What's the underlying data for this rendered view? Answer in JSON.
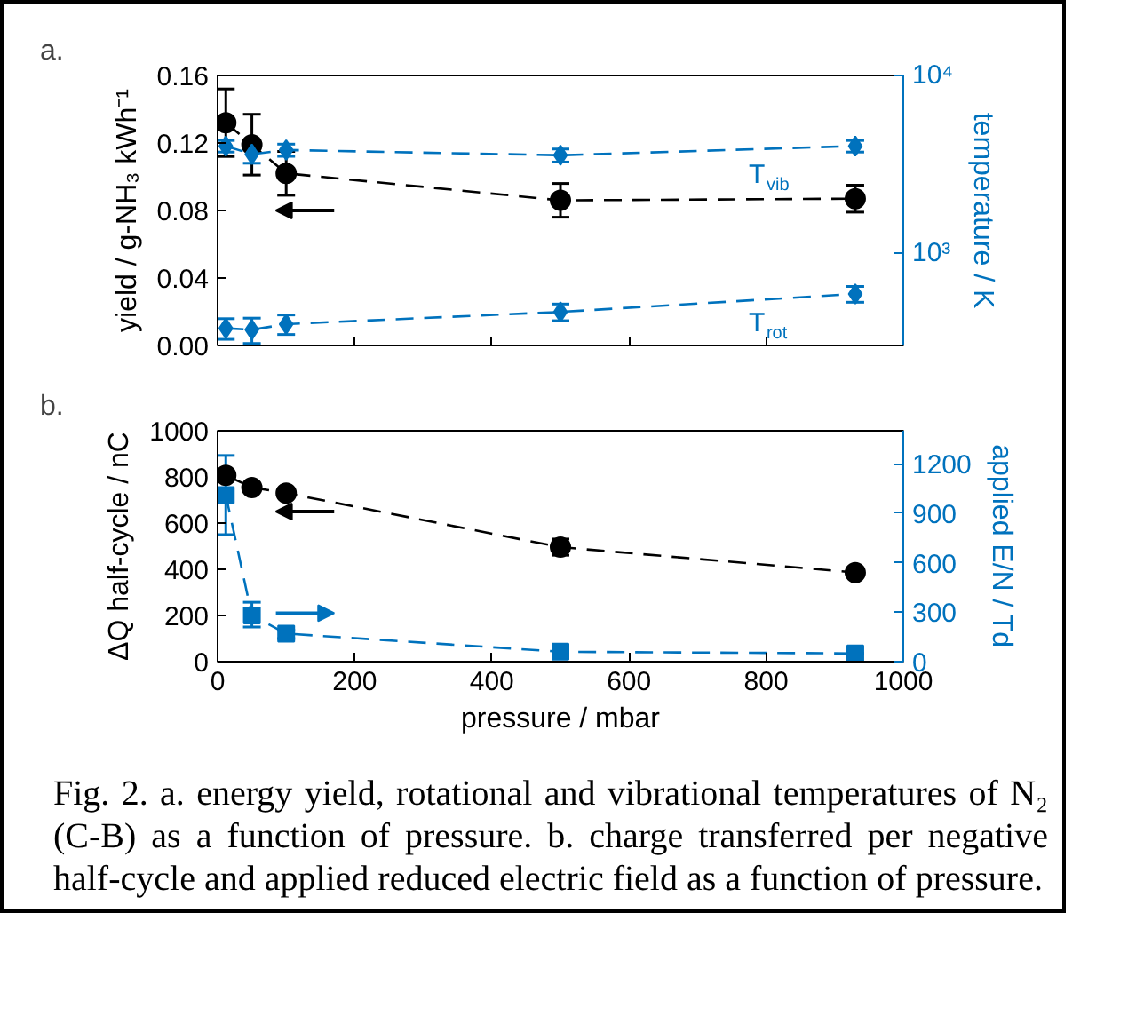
{
  "chart_data": [
    {
      "type": "line",
      "title": "a.",
      "ylabel": "yield / g-NH₃ kWh⁻¹",
      "y2label": "temperature / K",
      "xlim": [
        0,
        1000
      ],
      "xticks": [
        0,
        200,
        400,
        600,
        800,
        1000
      ],
      "ylim": [
        0,
        0.16
      ],
      "yticks": [
        {
          "value": 0,
          "label": "0.00"
        },
        0.04,
        0.08,
        0.12,
        0.16
      ],
      "y2lim": [
        300,
        10000
      ],
      "y2ticks": [
        {
          "value": 1000,
          "label": "10³"
        },
        {
          "value": 10000,
          "label": "10⁴"
        }
      ],
      "log": "y2",
      "tick_labels": "y",
      "line_style": "dashed",
      "series": [
        {
          "color": "#000000",
          "marker": "circle",
          "x": [
            12,
            50,
            100,
            500,
            930
          ],
          "values": [
            0.132,
            0.119,
            0.102,
            0.086,
            0.087
          ],
          "errors": [
            0.02,
            0.018,
            0.013,
            0.01,
            0.008
          ]
        },
        {
          "name": "T$_{vib}$",
          "axis": "y2",
          "color": "#0072bd",
          "marker": "diamond",
          "x": [
            12,
            50,
            100,
            500,
            930
          ],
          "values": [
            4000,
            3600,
            3800,
            3550,
            4000
          ],
          "errors": [
            300,
            400,
            300,
            300,
            300
          ]
        },
        {
          "name": "T$_{rot}$",
          "axis": "y2",
          "color": "#0072bd",
          "marker": "diamond",
          "x": [
            12,
            50,
            100,
            500,
            930
          ],
          "values": [
            375,
            368,
            396,
            464,
            586
          ],
          "errors": [
            50,
            60,
            50,
            50,
            60
          ]
        }
      ]
    },
    {
      "type": "line",
      "title": "b.",
      "xlabel": "pressure / mbar",
      "ylabel": "ΔQ half-cycle / nC",
      "y2label": "applied E/N / Td",
      "xlim": [
        0,
        1000
      ],
      "xticks": [
        0,
        200,
        400,
        600,
        800,
        1000
      ],
      "ylim": [
        0,
        1000
      ],
      "yticks": [
        0,
        200,
        400,
        600,
        800,
        1000
      ],
      "y2lim": [
        0,
        1400
      ],
      "y2ticks": [
        0,
        300,
        600,
        900,
        1200
      ],
      "line_style": "dashed",
      "annotations": [
        "Fig. 2. a. energy yield, rotational and vibrational temperatures of N₂ (C-B) as a function of pressure. b. charge transferred per negative half-cycle and applied reduced electric field as a function of pressure."
      ],
      "series": [
        {
          "color": "#000000",
          "marker": "circle",
          "x": [
            12,
            50,
            100,
            500,
            930
          ],
          "values": [
            807,
            754,
            730,
            496,
            386
          ],
          "errors": [
            null,
            null,
            null,
            35,
            null
          ]
        },
        {
          "axis": "y2",
          "color": "#0072bd",
          "marker": "square",
          "x": [
            12,
            50,
            100,
            500,
            930
          ],
          "values": [
            1010,
            280,
            170,
            60,
            50
          ],
          "errors": [
            [
              770,
              1250
            ],
            [
              210,
              360
            ],
            [
              140,
              190
            ],
            null,
            null
          ]
        }
      ]
    }
  ]
}
